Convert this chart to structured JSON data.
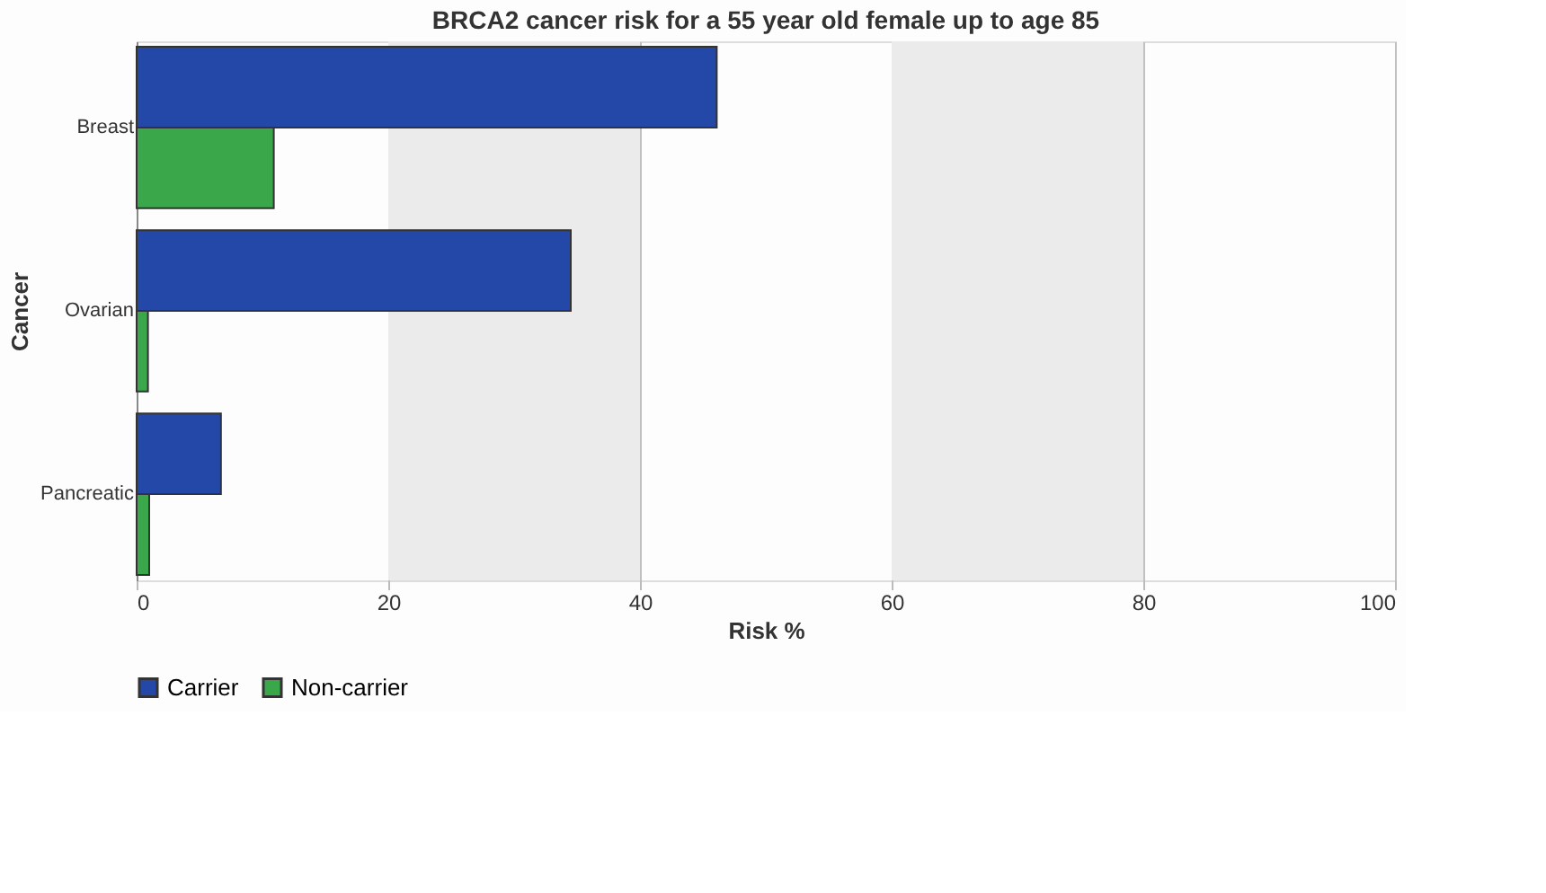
{
  "chart_data": {
    "type": "bar",
    "orientation": "horizontal",
    "title": "BRCA2 cancer risk for a 55 year old female up to age 85",
    "xlabel": "Risk %",
    "ylabel": "Cancer",
    "categories": [
      "Breast",
      "Ovarian",
      "Pancreatic"
    ],
    "series": [
      {
        "name": "Carrier",
        "color": "#2448a8",
        "values": [
          46.1,
          34.5,
          6.7
        ]
      },
      {
        "name": "Non-carrier",
        "color": "#3aa84a",
        "values": [
          10.9,
          0.9,
          1.0
        ]
      }
    ],
    "xlim": [
      0,
      100
    ],
    "xticks": [
      0,
      20,
      40,
      60,
      80,
      100
    ],
    "grid": "x",
    "legend": "bottom",
    "bands": [
      {
        "axis": "x",
        "from": 20,
        "to": 40,
        "color": "#ebebeb"
      },
      {
        "axis": "x",
        "from": 60,
        "to": 80,
        "color": "#ebebeb"
      }
    ]
  }
}
